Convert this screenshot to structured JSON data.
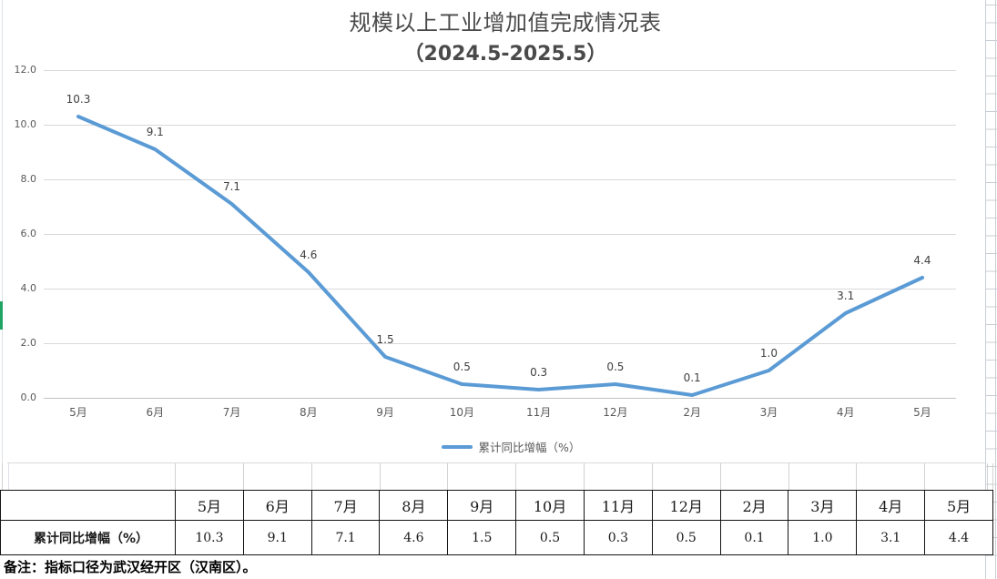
{
  "title": {
    "line1": "规模以上工业增加值完成情况表",
    "line2": "（2024.5-2025.5）"
  },
  "chart_data": {
    "type": "line",
    "title": "规模以上工业增加值完成情况表（2024.5-2025.5）",
    "categories": [
      "5月",
      "6月",
      "7月",
      "8月",
      "9月",
      "10月",
      "11月",
      "12月",
      "2月",
      "3月",
      "4月",
      "5月"
    ],
    "series": [
      {
        "name": "累计同比增幅（%）",
        "values": [
          10.3,
          9.1,
          7.1,
          4.6,
          1.5,
          0.5,
          0.3,
          0.5,
          0.1,
          1.0,
          3.1,
          4.4
        ]
      }
    ],
    "data_labels": [
      "10.3",
      "9.1",
      "7.1",
      "4.6",
      "1.5",
      "0.5",
      "0.3",
      "0.5",
      "0.1",
      "1.0",
      "3.1",
      "4.4"
    ],
    "xlabel": "",
    "ylabel": "",
    "ylim": [
      0.0,
      12.0
    ],
    "y_tick_step": 2.0,
    "y_ticks": [
      "12.0",
      "10.0",
      "8.0",
      "6.0",
      "4.0",
      "2.0",
      "0.0"
    ],
    "grid": true,
    "legend_position": "bottom",
    "line_color": "#5B9BD5"
  },
  "legend": {
    "label": "累计同比增幅（%）"
  },
  "table": {
    "row_label": "累计同比增幅（%）",
    "columns": [
      "5月",
      "6月",
      "7月",
      "8月",
      "9月",
      "10月",
      "11月",
      "12月",
      "2月",
      "3月",
      "4月",
      "5月"
    ],
    "values": [
      "10.3",
      "9.1",
      "7.1",
      "4.6",
      "1.5",
      "0.5",
      "0.3",
      "0.5",
      "0.1",
      "1.0",
      "3.1",
      "4.4"
    ]
  },
  "note": "备注：指标口径为武汉经开区（汉南区）。",
  "colors": {
    "series_line": "#5B9BD5",
    "gridline": "#D9D9D9",
    "axis_text": "#595959",
    "sheet_grid": "#C9CED6",
    "selection_accent_green": "#21A366"
  }
}
